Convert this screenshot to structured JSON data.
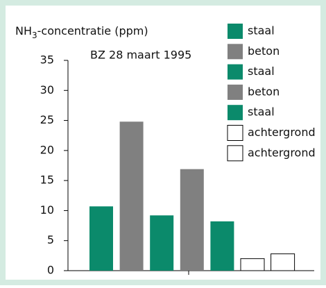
{
  "chart_data": {
    "type": "bar",
    "ylabel": {
      "main": "NH",
      "sub": "3",
      "rest": "-concentratie (ppm)"
    },
    "annotation": "BZ 28 maart 1995",
    "categories": [
      null,
      null,
      null,
      null,
      null,
      null,
      null
    ],
    "values": [
      10.7,
      24.8,
      9.2,
      16.9,
      8.2,
      2.0,
      2.8
    ],
    "colors": [
      "#0b8a6b",
      "#808080",
      "#0b8a6b",
      "#808080",
      "#0b8a6b",
      "#ffffff",
      "#ffffff"
    ],
    "legend": [
      "staal",
      "beton",
      "staal",
      "beton",
      "staal",
      "achtergrond",
      "achtergrond"
    ],
    "ylim": [
      0,
      35
    ],
    "yticks": [
      0,
      5,
      10,
      15,
      20,
      25,
      30,
      35
    ],
    "grid": false
  }
}
